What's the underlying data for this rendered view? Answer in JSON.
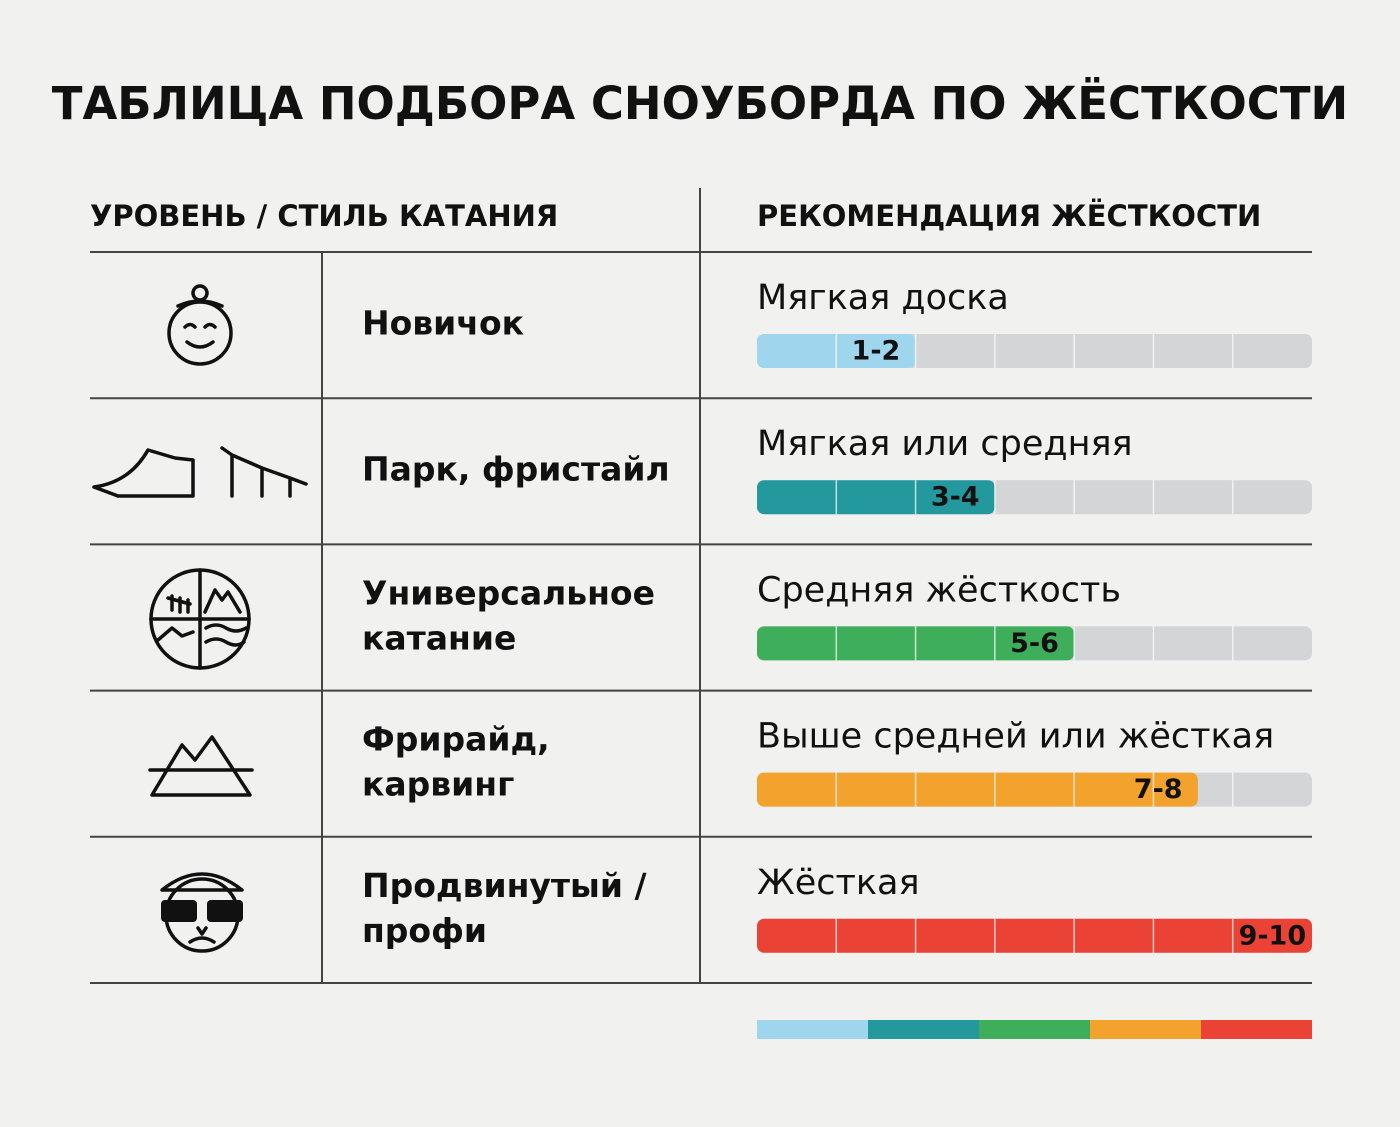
{
  "header": {
    "title": "ТАБЛИЦА ПОДБОРА СНОУБОРДА ПО ЖЁСТКОСТИ"
  },
  "table": {
    "columns": [
      "УРОВЕНЬ / СТИЛЬ КАТАНИЯ",
      "РЕКОМЕНДАЦИЯ ЖЁСТКОСТИ"
    ],
    "segments": 7,
    "rows": [
      {
        "label": [
          "Новичок"
        ],
        "recommendation": "Мягкая доска",
        "range": "1-2",
        "filled": 2,
        "color": "#9fd6ee"
      },
      {
        "label": [
          "Парк, фристайл"
        ],
        "recommendation": "Мягкая или средняя",
        "range": "3-4",
        "filled": 3,
        "color": "#23999d"
      },
      {
        "label": [
          "Универсальное",
          "катание"
        ],
        "recommendation": "Средняя жёсткость",
        "range": "5-6",
        "filled": 4,
        "color": "#3fae5a"
      },
      {
        "label": [
          "Фрирайд,",
          "карвинг"
        ],
        "recommendation": "Выше средней или жёсткая",
        "range": "7-8",
        "filled": 5.56,
        "color": "#f2a22d"
      },
      {
        "label": [
          "Продвинутый /",
          "профи"
        ],
        "recommendation": "Жёсткая",
        "range": "9-10",
        "filled": 7,
        "color": "#ea4335"
      }
    ]
  }
}
